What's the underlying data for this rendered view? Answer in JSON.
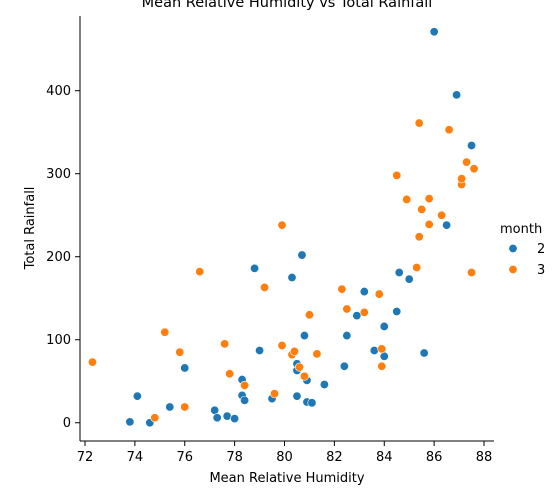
{
  "chart_data": {
    "type": "scatter",
    "title": "Mean Relative Humidity vs Total Rainfall",
    "xlabel": "Mean Relative Humidity",
    "ylabel": "Total Rainfall",
    "xlim": [
      71.8,
      88.4
    ],
    "ylim": [
      -22,
      490
    ],
    "xticks": [
      72,
      74,
      76,
      78,
      80,
      82,
      84,
      86,
      88
    ],
    "yticks": [
      0,
      100,
      200,
      300,
      400
    ],
    "legend": {
      "title": "month",
      "placement": "right"
    },
    "series": [
      {
        "name": "2",
        "color": "#1f77b4",
        "points": [
          [
            73.8,
            1
          ],
          [
            74.1,
            32
          ],
          [
            74.6,
            0
          ],
          [
            75.4,
            19
          ],
          [
            76.0,
            66
          ],
          [
            77.2,
            15
          ],
          [
            77.3,
            6
          ],
          [
            77.7,
            8
          ],
          [
            78.0,
            5
          ],
          [
            78.3,
            52
          ],
          [
            78.3,
            33
          ],
          [
            78.4,
            27
          ],
          [
            78.8,
            186
          ],
          [
            79.0,
            87
          ],
          [
            79.5,
            29
          ],
          [
            80.3,
            175
          ],
          [
            80.5,
            63
          ],
          [
            80.5,
            71
          ],
          [
            80.5,
            32
          ],
          [
            80.7,
            202
          ],
          [
            80.8,
            105
          ],
          [
            80.9,
            51
          ],
          [
            80.9,
            25
          ],
          [
            81.1,
            24
          ],
          [
            81.6,
            46
          ],
          [
            82.4,
            68
          ],
          [
            82.5,
            105
          ],
          [
            82.9,
            129
          ],
          [
            83.2,
            158
          ],
          [
            83.6,
            87
          ],
          [
            84.0,
            80
          ],
          [
            84.0,
            116
          ],
          [
            84.5,
            134
          ],
          [
            84.6,
            181
          ],
          [
            85.0,
            173
          ],
          [
            85.6,
            84
          ],
          [
            86.0,
            471
          ],
          [
            86.5,
            238
          ],
          [
            86.9,
            395
          ],
          [
            87.5,
            334
          ]
        ]
      },
      {
        "name": "3",
        "color": "#ff7f0e",
        "points": [
          [
            72.3,
            73
          ],
          [
            74.8,
            6
          ],
          [
            75.2,
            109
          ],
          [
            75.8,
            85
          ],
          [
            76.0,
            19
          ],
          [
            76.6,
            182
          ],
          [
            77.6,
            95
          ],
          [
            77.8,
            59
          ],
          [
            78.4,
            45
          ],
          [
            79.2,
            163
          ],
          [
            79.6,
            35
          ],
          [
            79.9,
            238
          ],
          [
            79.9,
            93
          ],
          [
            80.3,
            82
          ],
          [
            80.4,
            86
          ],
          [
            80.6,
            67
          ],
          [
            80.8,
            56
          ],
          [
            81.0,
            130
          ],
          [
            81.3,
            83
          ],
          [
            82.3,
            161
          ],
          [
            82.5,
            137
          ],
          [
            83.2,
            133
          ],
          [
            83.8,
            155
          ],
          [
            83.9,
            89
          ],
          [
            83.9,
            68
          ],
          [
            84.5,
            298
          ],
          [
            84.9,
            269
          ],
          [
            85.3,
            187
          ],
          [
            85.4,
            361
          ],
          [
            85.4,
            224
          ],
          [
            85.5,
            257
          ],
          [
            85.8,
            239
          ],
          [
            85.8,
            270
          ],
          [
            86.3,
            250
          ],
          [
            86.6,
            353
          ],
          [
            87.1,
            287
          ],
          [
            87.1,
            294
          ],
          [
            87.3,
            314
          ],
          [
            87.5,
            181
          ],
          [
            87.6,
            306
          ]
        ]
      }
    ]
  }
}
